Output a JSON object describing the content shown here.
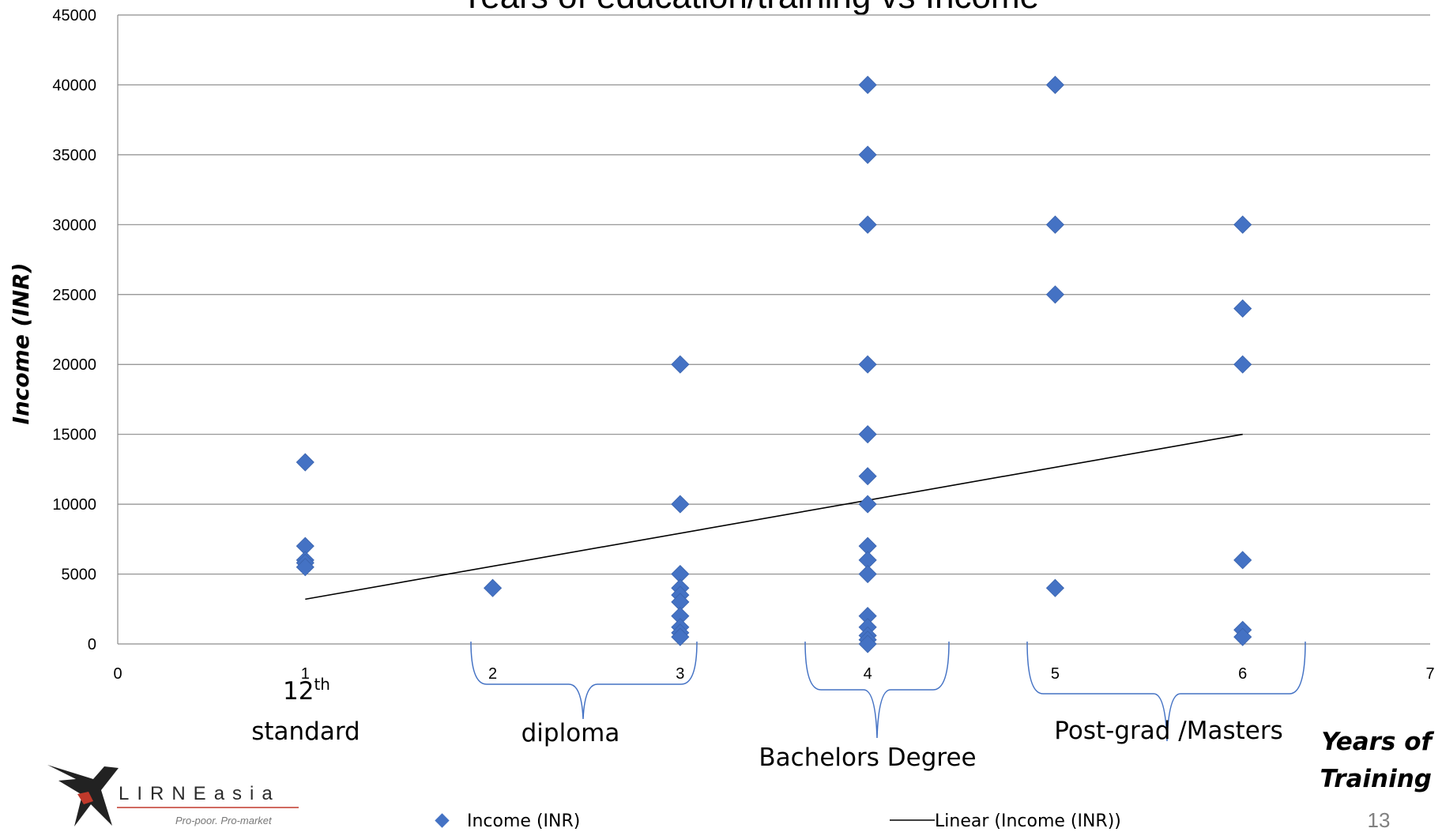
{
  "chart_data": {
    "type": "scatter",
    "title": "Years of education/training vs Income",
    "xlabel": "Years of Training",
    "ylabel": "Income (INR)",
    "xlim": [
      0,
      7
    ],
    "ylim": [
      0,
      45000
    ],
    "x_ticks": [
      "0",
      "1",
      "2",
      "3",
      "4",
      "5",
      "6",
      "7"
    ],
    "y_ticks": [
      "0",
      "5000",
      "10000",
      "15000",
      "20000",
      "25000",
      "30000",
      "35000",
      "40000",
      "45000"
    ],
    "grid": "horizontal",
    "series": [
      {
        "name": "Income (INR)",
        "color": "#4472C4",
        "marker": "diamond",
        "points": [
          [
            1,
            13000
          ],
          [
            1,
            7000
          ],
          [
            1,
            6000
          ],
          [
            1,
            5800
          ],
          [
            1,
            5500
          ],
          [
            2,
            4000
          ],
          [
            3,
            20000
          ],
          [
            3,
            10000
          ],
          [
            3,
            5000
          ],
          [
            3,
            4000
          ],
          [
            3,
            3500
          ],
          [
            3,
            3000
          ],
          [
            3,
            2000
          ],
          [
            3,
            1200
          ],
          [
            3,
            800
          ],
          [
            3,
            500
          ],
          [
            4,
            40000
          ],
          [
            4,
            35000
          ],
          [
            4,
            30000
          ],
          [
            4,
            15000
          ],
          [
            4,
            12000
          ],
          [
            4,
            10000
          ],
          [
            4,
            7000
          ],
          [
            4,
            6000
          ],
          [
            4,
            5000
          ],
          [
            4,
            2000
          ],
          [
            4,
            1200
          ],
          [
            4,
            600
          ],
          [
            4,
            300
          ],
          [
            4,
            0
          ],
          [
            4,
            20000
          ],
          [
            5,
            40000
          ],
          [
            5,
            30000
          ],
          [
            5,
            25000
          ],
          [
            5,
            4000
          ],
          [
            6,
            30000
          ],
          [
            6,
            24000
          ],
          [
            6,
            20000
          ],
          [
            6,
            6000
          ],
          [
            6,
            1000
          ],
          [
            6,
            500
          ]
        ]
      },
      {
        "name": "Linear (Income (INR))",
        "color": "#000000",
        "type": "line",
        "points": [
          [
            1,
            3200
          ],
          [
            6,
            15000
          ]
        ]
      }
    ],
    "legend": "bottom",
    "annotations": {
      "twelfth_base": "12",
      "twelfth_sup": "th",
      "standard": "standard",
      "diploma": "diploma",
      "bachelors": "Bachelors Degree",
      "postgrad": "Post-grad /Masters",
      "xlabel_line1": "Years of",
      "xlabel_line2": "Training"
    }
  },
  "logo": {
    "name": "LIRNEasia",
    "wordmark": "LIRNEasia",
    "tagline": "Pro-poor. Pro-market"
  },
  "page_number": "13"
}
